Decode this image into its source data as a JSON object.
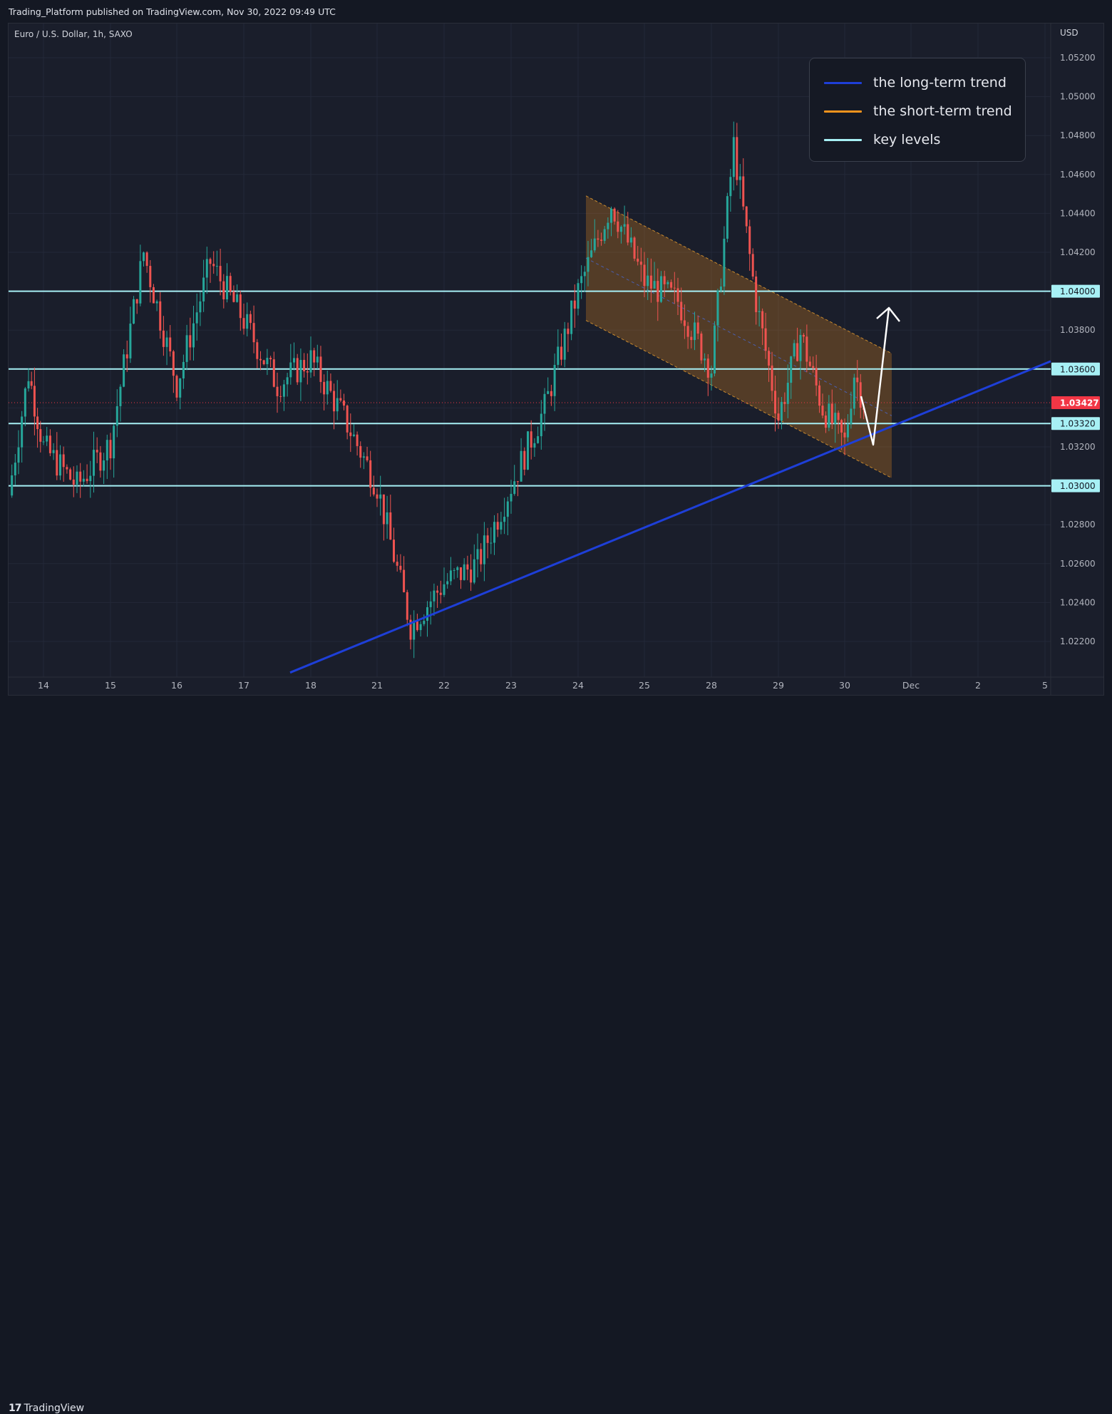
{
  "header": {
    "published": "Trading_Platform published on TradingView.com, Nov 30, 2022 09:49 UTC"
  },
  "symbol": "Euro / U.S. Dollar, 1h, SAXO",
  "currency": "USD",
  "footer": {
    "brand": "TradingView"
  },
  "legend": [
    {
      "label": "the long-term trend",
      "color": "#1e3fd8"
    },
    {
      "label": "the short-term trend",
      "color": "#f7941d"
    },
    {
      "label": "key levels",
      "color": "#a7f0f5"
    }
  ],
  "chart_data": {
    "type": "candlestick",
    "ylim": [
      1.0204,
      1.0536
    ],
    "y_ticks": [
      "1.05200",
      "1.05000",
      "1.04800",
      "1.04600",
      "1.04400",
      "1.04200",
      "1.03800",
      "1.03200",
      "1.02800",
      "1.02600",
      "1.02400",
      "1.02200"
    ],
    "x_ticks": [
      "14",
      "15",
      "16",
      "17",
      "18",
      "21",
      "22",
      "23",
      "24",
      "25",
      "28",
      "29",
      "30",
      "Dec",
      "2",
      "5"
    ],
    "key_levels": [
      {
        "value": 1.04,
        "label": "1.04000"
      },
      {
        "value": 1.036,
        "label": "1.03600"
      },
      {
        "value": 1.0332,
        "label": "1.03320"
      },
      {
        "value": 1.03,
        "label": "1.03000"
      }
    ],
    "current_price": {
      "value": 1.03427,
      "label": "1.03427",
      "color": "#f23645"
    },
    "long_term_trend": {
      "from": {
        "date": "17 Nov",
        "price": 1.0204
      },
      "to": {
        "date": "1 Dec",
        "price": 1.0364
      }
    },
    "price_path": [
      {
        "date": "11 Nov",
        "price": 1.0295
      },
      {
        "date": "13 Nov",
        "price": 1.0358
      },
      {
        "date": "14 Nov",
        "price": 1.032
      },
      {
        "date": "14 Nov",
        "price": 1.03
      },
      {
        "date": "15 Nov",
        "price": 1.0322
      },
      {
        "date": "15 Nov",
        "price": 1.042
      },
      {
        "date": "16 Nov",
        "price": 1.0352
      },
      {
        "date": "16 Nov",
        "price": 1.0415
      },
      {
        "date": "17 Nov",
        "price": 1.0385
      },
      {
        "date": "17 Nov",
        "price": 1.0352
      },
      {
        "date": "18 Nov",
        "price": 1.0365
      },
      {
        "date": "18 Nov",
        "price": 1.0335
      },
      {
        "date": "21 Nov",
        "price": 1.03
      },
      {
        "date": "21 Nov",
        "price": 1.0228
      },
      {
        "date": "22 Nov",
        "price": 1.025
      },
      {
        "date": "22 Nov",
        "price": 1.026
      },
      {
        "date": "23 Nov",
        "price": 1.03
      },
      {
        "date": "23 Nov",
        "price": 1.034
      },
      {
        "date": "24 Nov",
        "price": 1.04
      },
      {
        "date": "24 Nov",
        "price": 1.0445
      },
      {
        "date": "25 Nov",
        "price": 1.0405
      },
      {
        "date": "25 Nov",
        "price": 1.0395
      },
      {
        "date": "28 Nov",
        "price": 1.036
      },
      {
        "date": "28 Nov",
        "price": 1.0475
      },
      {
        "date": "28 Nov",
        "price": 1.0395
      },
      {
        "date": "29 Nov",
        "price": 1.0335
      },
      {
        "date": "29 Nov",
        "price": 1.0378
      },
      {
        "date": "29 Nov",
        "price": 1.034
      },
      {
        "date": "30 Nov",
        "price": 1.0322
      },
      {
        "date": "30 Nov",
        "price": 1.0358
      },
      {
        "date": "30 Nov",
        "price": 1.0343
      }
    ]
  }
}
